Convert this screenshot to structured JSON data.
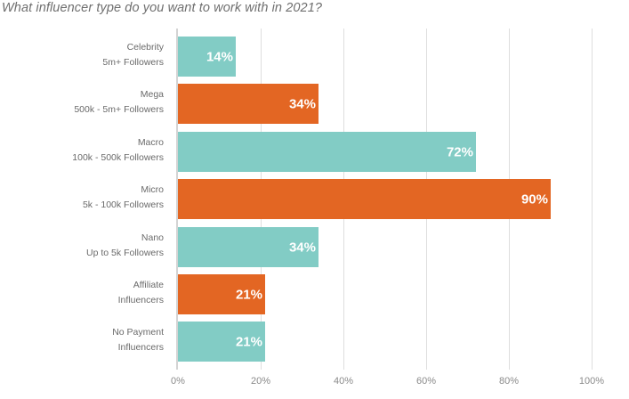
{
  "title": "What influencer type do you want to work with in 2021?",
  "colors": {
    "teal": "#82CCC5",
    "orange": "#E36623",
    "grid": "#DEDEDE",
    "axis": "#D4D4D4"
  },
  "axis": {
    "ticks": [
      "0%",
      "20%",
      "40%",
      "60%",
      "80%",
      "100%"
    ]
  },
  "categories": [
    {
      "line1": "Celebrity",
      "line2": "5m+ Followers",
      "value": 14,
      "label": "14%",
      "color": "teal"
    },
    {
      "line1": "Mega",
      "line2": "500k - 5m+ Followers",
      "value": 34,
      "label": "34%",
      "color": "orange"
    },
    {
      "line1": "Macro",
      "line2": "100k - 500k Followers",
      "value": 72,
      "label": "72%",
      "color": "teal"
    },
    {
      "line1": "Micro",
      "line2": "5k - 100k Followers",
      "value": 90,
      "label": "90%",
      "color": "orange"
    },
    {
      "line1": "Nano",
      "line2": "Up to 5k Followers",
      "value": 34,
      "label": "34%",
      "color": "teal"
    },
    {
      "line1": "Affiliate",
      "line2": "Influencers",
      "value": 21,
      "label": "21%",
      "color": "orange"
    },
    {
      "line1": "No Payment",
      "line2": "Influencers",
      "value": 21,
      "label": "21%",
      "color": "teal"
    }
  ],
  "chart_data": {
    "type": "bar",
    "orientation": "horizontal",
    "title": "What influencer type do you want to work with in 2021?",
    "categories": [
      "Celebrity (5m+ Followers)",
      "Mega (500k - 5m+ Followers)",
      "Macro (100k - 500k Followers)",
      "Micro (5k - 100k Followers)",
      "Nano (Up to 5k Followers)",
      "Affiliate Influencers",
      "No Payment Influencers"
    ],
    "values": [
      14,
      34,
      72,
      90,
      34,
      21,
      21
    ],
    "value_labels": [
      "14%",
      "34%",
      "72%",
      "90%",
      "34%",
      "21%",
      "21%"
    ],
    "bar_colors": [
      "#82CCC5",
      "#E36623",
      "#82CCC5",
      "#E36623",
      "#82CCC5",
      "#E36623",
      "#82CCC5"
    ],
    "xlabel": "",
    "ylabel": "",
    "xlim": [
      0,
      100
    ],
    "x_ticks": [
      "0%",
      "20%",
      "40%",
      "60%",
      "80%",
      "100%"
    ],
    "grid": "vertical",
    "legend": "none"
  }
}
